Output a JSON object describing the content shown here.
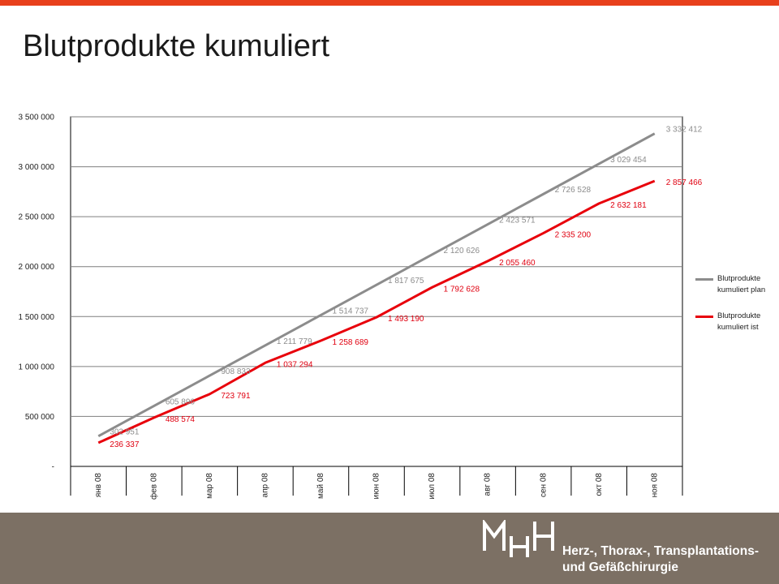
{
  "slide": {
    "title": "Blutprodukte kumuliert",
    "accent_color": "#e8401c"
  },
  "footer": {
    "logo_text": "MHH",
    "department_line1": "Herz-, Thorax-, Transplantations-",
    "department_line2": "und Gefäßchirurgie",
    "background_color": "#7c7064"
  },
  "chart_data": {
    "type": "line",
    "categories": [
      "янв 08",
      "фев 08",
      "мар 08",
      "апр 08",
      "май 08",
      "июн 08",
      "июл 08",
      "авг 08",
      "сен 08",
      "окт 08",
      "ноя 08"
    ],
    "ylim": [
      0,
      3500000
    ],
    "yticks": [
      0,
      500000,
      1000000,
      1500000,
      2000000,
      2500000,
      3000000,
      3500000
    ],
    "ytick_labels": [
      "-",
      "500 000",
      "1 000 000",
      "1 500 000",
      "2 000 000",
      "2 500 000",
      "3 000 000",
      "3 500 000"
    ],
    "grid": true,
    "legend_position": "right",
    "series": [
      {
        "name": "Blutprodukte kumuliert plan",
        "color": "#8c8c8c",
        "values": [
          302951,
          605896,
          908833,
          1211779,
          1514737,
          1817675,
          2120626,
          2423571,
          2726528,
          3029454,
          3332412
        ],
        "labels": [
          "302 951",
          "605 896",
          "908 833",
          "1 211 779",
          "1 514 737",
          "1 817 675",
          "2 120 626",
          "2 423 571",
          "2 726 528",
          "3 029 454",
          "3 332 412"
        ]
      },
      {
        "name": "Blutprodukte kumuliert ist",
        "color": "#e8000b",
        "values": [
          236337,
          488574,
          723791,
          1037294,
          1258689,
          1493190,
          1792628,
          2055460,
          2335200,
          2632181,
          2857466
        ],
        "labels": [
          "236 337",
          "488 574",
          "723 791",
          "1 037 294",
          "1 258 689",
          "1 493 190",
          "1 792 628",
          "2 055 460",
          "2 335 200",
          "2 632 181",
          "2 857 466"
        ]
      }
    ]
  }
}
